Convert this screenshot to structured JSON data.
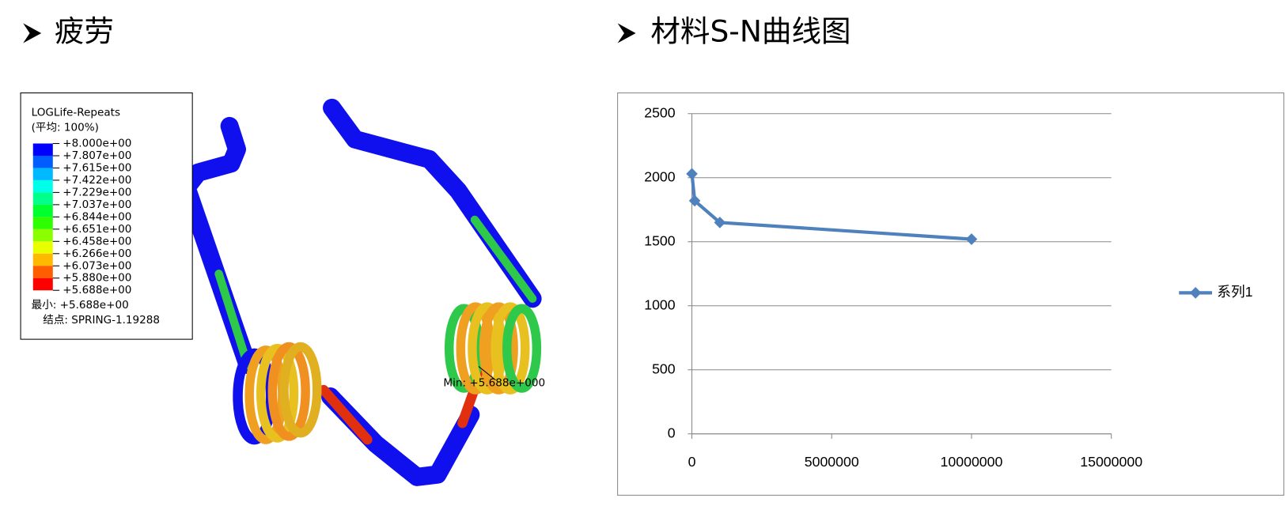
{
  "left": {
    "heading": "疲劳",
    "contour": {
      "title": "LOGLife-Repeats",
      "subtitle": "(平均: 100%)",
      "levels": [
        "+8.000e+00",
        "+7.807e+00",
        "+7.615e+00",
        "+7.422e+00",
        "+7.229e+00",
        "+7.037e+00",
        "+6.844e+00",
        "+6.651e+00",
        "+6.458e+00",
        "+6.266e+00",
        "+6.073e+00",
        "+5.880e+00",
        "+5.688e+00"
      ],
      "colors": [
        "#0000ff",
        "#005dff",
        "#00b9ff",
        "#00ffe8",
        "#00ff8b",
        "#00ff2e",
        "#2eff00",
        "#8bff00",
        "#e8ff00",
        "#ffb900",
        "#ff5d00",
        "#ff0000"
      ],
      "min": "最小: +5.688e+00",
      "node": "结点: SPRING-1.19288",
      "annotation": "Min: +5.688e+000"
    }
  },
  "right": {
    "heading": "材料S-N曲线图"
  },
  "chart_data": {
    "type": "line",
    "x": [
      1000,
      100000,
      1000000,
      10000000
    ],
    "series": [
      {
        "name": "系列1",
        "color": "#4f81bd",
        "values": [
          2030,
          1820,
          1650,
          1520
        ]
      }
    ],
    "xlim": [
      0,
      15000000
    ],
    "xticks": [
      0,
      5000000,
      10000000,
      15000000
    ],
    "ylim": [
      0,
      2500
    ],
    "yticks": [
      0,
      500,
      1000,
      1500,
      2000,
      2500
    ],
    "grid": true,
    "legend": "right"
  }
}
